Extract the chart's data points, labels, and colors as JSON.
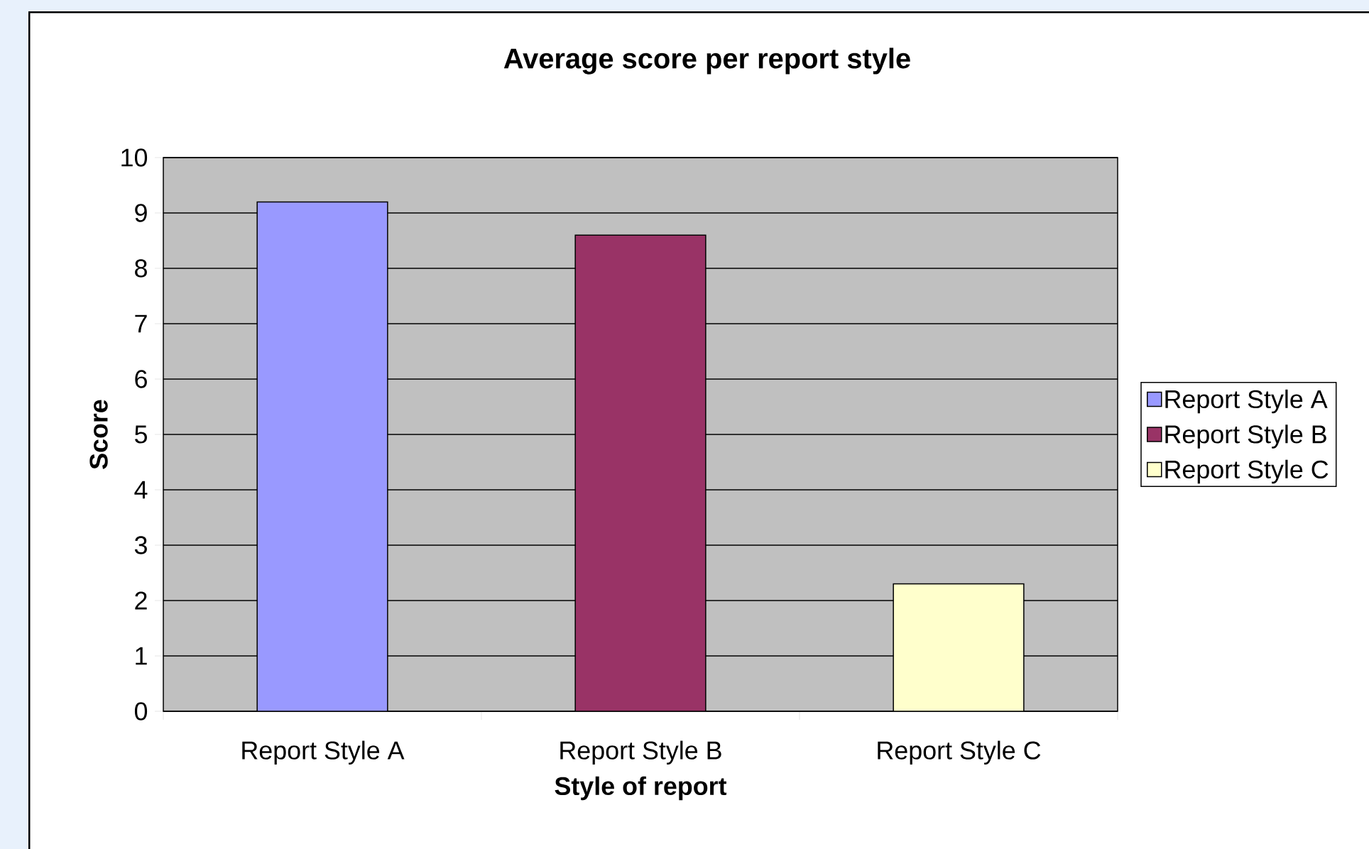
{
  "chart_data": {
    "type": "bar",
    "title": "Average score per report style",
    "xlabel": "Style of report",
    "ylabel": "Score",
    "categories": [
      "Report Style A",
      "Report Style B",
      "Report Style C"
    ],
    "series": [
      {
        "name": "Report Style A",
        "color": "#9999ff",
        "values": [
          9.2,
          null,
          null
        ]
      },
      {
        "name": "Report Style B",
        "color": "#993366",
        "values": [
          null,
          8.6,
          null
        ]
      },
      {
        "name": "Report Style C",
        "color": "#ffffcc",
        "values": [
          null,
          null,
          2.3
        ]
      }
    ],
    "ylim": [
      0,
      10
    ],
    "yticks": [
      0,
      1,
      2,
      3,
      4,
      5,
      6,
      7,
      8,
      9,
      10
    ],
    "grid": "y",
    "legend": "right"
  }
}
